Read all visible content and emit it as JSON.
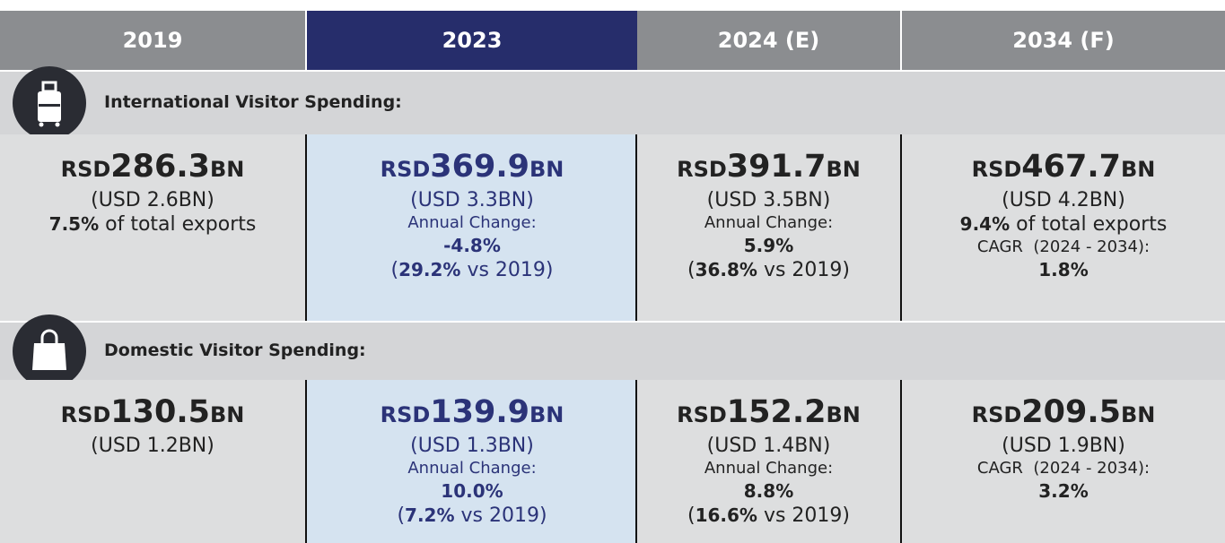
{
  "header": {
    "columns": [
      "2019",
      "2023",
      "2024 (E)",
      "2034 (F)"
    ]
  },
  "sections": [
    {
      "label": "International Visitor Spending:",
      "cells": [
        {
          "currency": "RSD",
          "amount": "286.3",
          "unit": "BN",
          "lines": [
            [
              {
                "text": "(USD 2.6BN)"
              }
            ],
            [
              {
                "text": "7.5%",
                "bold": true
              },
              {
                "text": " of total exports"
              }
            ]
          ]
        },
        {
          "currency": "RSD",
          "amount": "369.9",
          "unit": "BN",
          "lines": [
            [
              {
                "text": "(USD 3.3BN)"
              }
            ],
            [
              {
                "text": "Annual Change:",
                "small": true
              }
            ],
            [
              {
                "text": "-4.8%",
                "bold": true
              }
            ],
            [
              {
                "text": "("
              },
              {
                "text": "29.2%",
                "bold": true
              },
              {
                "text": " vs 2019)"
              }
            ]
          ]
        },
        {
          "currency": "RSD",
          "amount": "391.7",
          "unit": "BN",
          "lines": [
            [
              {
                "text": "(USD 3.5BN)"
              }
            ],
            [
              {
                "text": "Annual Change:",
                "small": true
              }
            ],
            [
              {
                "text": "5.9%",
                "bold": true
              }
            ],
            [
              {
                "text": "("
              },
              {
                "text": "36.8%",
                "bold": true
              },
              {
                "text": " vs 2019)"
              }
            ]
          ]
        },
        {
          "currency": "RSD",
          "amount": "467.7",
          "unit": "BN",
          "lines": [
            [
              {
                "text": "(USD 4.2BN)"
              }
            ],
            [
              {
                "text": "9.4%",
                "bold": true
              },
              {
                "text": " of total exports"
              }
            ],
            [
              {
                "text": "CAGR  (2024 - 2034):",
                "small": true
              }
            ],
            [
              {
                "text": "1.8%",
                "bold": true
              }
            ]
          ]
        }
      ]
    },
    {
      "label": "Domestic Visitor Spending:",
      "cells": [
        {
          "currency": "RSD",
          "amount": "130.5",
          "unit": "BN",
          "lines": [
            [
              {
                "text": "(USD 1.2BN)"
              }
            ]
          ]
        },
        {
          "currency": "RSD",
          "amount": "139.9",
          "unit": "BN",
          "lines": [
            [
              {
                "text": "(USD 1.3BN)"
              }
            ],
            [
              {
                "text": "Annual Change:",
                "small": true
              }
            ],
            [
              {
                "text": "10.0%",
                "bold": true
              }
            ],
            [
              {
                "text": "("
              },
              {
                "text": "7.2%",
                "bold": true
              },
              {
                "text": " vs 2019)"
              }
            ]
          ]
        },
        {
          "currency": "RSD",
          "amount": "152.2",
          "unit": "BN",
          "lines": [
            [
              {
                "text": "(USD 1.4BN)"
              }
            ],
            [
              {
                "text": "Annual Change:",
                "small": true
              }
            ],
            [
              {
                "text": "8.8%",
                "bold": true
              }
            ],
            [
              {
                "text": "("
              },
              {
                "text": "16.6%",
                "bold": true
              },
              {
                "text": " vs 2019)"
              }
            ]
          ]
        },
        {
          "currency": "RSD",
          "amount": "209.5",
          "unit": "BN",
          "lines": [
            [
              {
                "text": "(USD 1.9BN)"
              }
            ],
            [
              {
                "text": "CAGR  (2024 - 2034):",
                "small": true
              }
            ],
            [
              {
                "text": "3.2%",
                "bold": true
              }
            ]
          ]
        }
      ]
    }
  ]
}
